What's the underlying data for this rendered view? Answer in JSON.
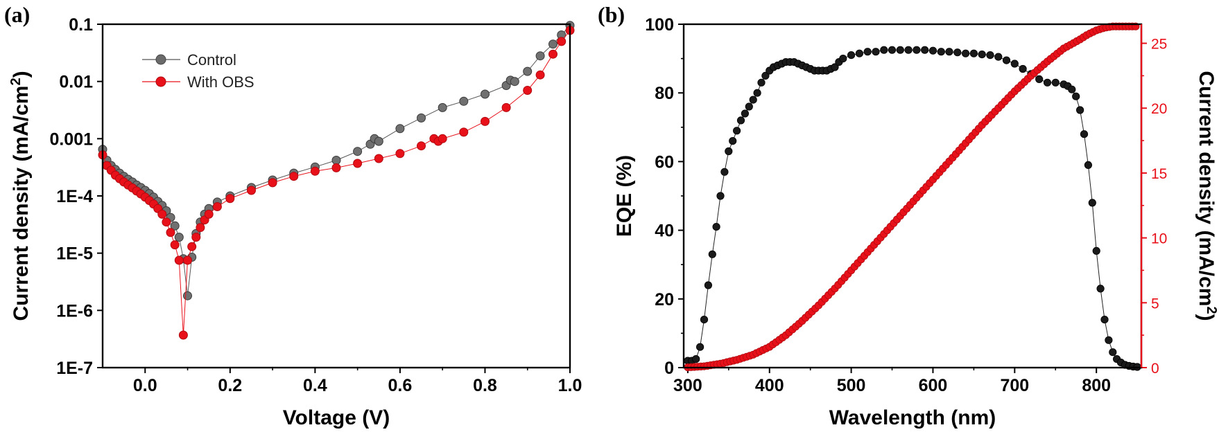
{
  "colors": {
    "control": "#555555",
    "obs": "#e8111a",
    "eqe": "#1a1a1a",
    "jsc": "#e8111a"
  },
  "panels": [
    {
      "label": "(a)"
    },
    {
      "label": "(b)"
    }
  ],
  "chart_data": [
    {
      "type": "scatter",
      "yscale": "log",
      "xlabel": "Voltage (V)",
      "ylabel_main": "Current density (mA/cm",
      "ylabel_sup": "2",
      "ylabel_end": ")",
      "xlim": [
        -0.1,
        1.0
      ],
      "ylim": [
        1e-07,
        0.1
      ],
      "xticks": [
        0.0,
        0.2,
        0.4,
        0.6,
        0.8,
        1.0
      ],
      "xtick_labels": [
        "0.0",
        "0.2",
        "0.4",
        "0.6",
        "0.8",
        "1.0"
      ],
      "yticks": [
        1e-07,
        1e-06,
        1e-05,
        0.0001,
        0.001,
        0.01,
        0.1
      ],
      "ytick_labels": [
        "1E-7",
        "1E-6",
        "1E-5",
        "1E-4",
        "0.001",
        "0.01",
        "0.1"
      ],
      "legend": [
        "Control",
        "With OBS"
      ],
      "series": [
        {
          "name": "Control",
          "points": [
            [
              -0.1,
              0.00065
            ],
            [
              -0.09,
              0.00042
            ],
            [
              -0.08,
              0.00034
            ],
            [
              -0.07,
              0.00029
            ],
            [
              -0.06,
              0.00025
            ],
            [
              -0.05,
              0.00022
            ],
            [
              -0.04,
              0.000195
            ],
            [
              -0.03,
              0.000175
            ],
            [
              -0.02,
              0.000155
            ],
            [
              -0.01,
              0.00014
            ],
            [
              0.0,
              0.000125
            ],
            [
              0.01,
              0.00011
            ],
            [
              0.02,
              9.5e-05
            ],
            [
              0.03,
              8e-05
            ],
            [
              0.04,
              6.8e-05
            ],
            [
              0.05,
              5.5e-05
            ],
            [
              0.06,
              4.2e-05
            ],
            [
              0.07,
              3e-05
            ],
            [
              0.08,
              1.9e-05
            ],
            [
              0.09,
              8e-06
            ],
            [
              0.1,
              1.8e-06
            ],
            [
              0.11,
              8.5e-06
            ],
            [
              0.12,
              2.2e-05
            ],
            [
              0.13,
              3.5e-05
            ],
            [
              0.14,
              4.8e-05
            ],
            [
              0.15,
              6e-05
            ],
            [
              0.17,
              7.8e-05
            ],
            [
              0.2,
              0.0001
            ],
            [
              0.25,
              0.00014
            ],
            [
              0.3,
              0.00019
            ],
            [
              0.35,
              0.00025
            ],
            [
              0.4,
              0.00032
            ],
            [
              0.45,
              0.00042
            ],
            [
              0.5,
              0.0006
            ],
            [
              0.53,
              0.0008
            ],
            [
              0.54,
              0.001
            ],
            [
              0.55,
              0.0009
            ],
            [
              0.6,
              0.0015
            ],
            [
              0.65,
              0.0023
            ],
            [
              0.7,
              0.0035
            ],
            [
              0.75,
              0.0045
            ],
            [
              0.8,
              0.006
            ],
            [
              0.85,
              0.0085
            ],
            [
              0.86,
              0.0105
            ],
            [
              0.87,
              0.01
            ],
            [
              0.9,
              0.015
            ],
            [
              0.93,
              0.028
            ],
            [
              0.96,
              0.045
            ],
            [
              0.98,
              0.065
            ],
            [
              1.0,
              0.095
            ]
          ]
        },
        {
          "name": "With OBS",
          "points": [
            [
              -0.1,
              0.00052
            ],
            [
              -0.09,
              0.00034
            ],
            [
              -0.08,
              0.00028
            ],
            [
              -0.07,
              0.00023
            ],
            [
              -0.06,
              0.0002
            ],
            [
              -0.05,
              0.000175
            ],
            [
              -0.04,
              0.000155
            ],
            [
              -0.03,
              0.000138
            ],
            [
              -0.02,
              0.000122
            ],
            [
              -0.01,
              0.000108
            ],
            [
              0.0,
              9.5e-05
            ],
            [
              0.01,
              8.3e-05
            ],
            [
              0.02,
              7.2e-05
            ],
            [
              0.03,
              6e-05
            ],
            [
              0.04,
              4.8e-05
            ],
            [
              0.05,
              3.5e-05
            ],
            [
              0.06,
              2.3e-05
            ],
            [
              0.07,
              1.4e-05
            ],
            [
              0.08,
              7.5e-06
            ],
            [
              0.09,
              3.7e-07
            ],
            [
              0.1,
              7.5e-06
            ],
            [
              0.11,
              1.3e-05
            ],
            [
              0.12,
              1.9e-05
            ],
            [
              0.13,
              2.8e-05
            ],
            [
              0.14,
              3.8e-05
            ],
            [
              0.15,
              4.8e-05
            ],
            [
              0.17,
              6.5e-05
            ],
            [
              0.2,
              9e-05
            ],
            [
              0.25,
              0.000125
            ],
            [
              0.3,
              0.00017
            ],
            [
              0.35,
              0.00022
            ],
            [
              0.4,
              0.00027
            ],
            [
              0.45,
              0.00031
            ],
            [
              0.5,
              0.00037
            ],
            [
              0.55,
              0.00045
            ],
            [
              0.6,
              0.00055
            ],
            [
              0.65,
              0.00075
            ],
            [
              0.68,
              0.001
            ],
            [
              0.69,
              0.0009
            ],
            [
              0.7,
              0.001
            ],
            [
              0.75,
              0.0013
            ],
            [
              0.8,
              0.002
            ],
            [
              0.85,
              0.0035
            ],
            [
              0.9,
              0.007
            ],
            [
              0.93,
              0.013
            ],
            [
              0.96,
              0.03
            ],
            [
              0.98,
              0.05
            ],
            [
              1.0,
              0.078
            ]
          ]
        }
      ]
    },
    {
      "type": "scatter",
      "xlabel": "Wavelength (nm)",
      "ylabel": "EQE (%)",
      "y2label_main": "Current density (mA/cm",
      "y2label_sup": "2",
      "y2label_end": ")",
      "xlim": [
        295,
        855
      ],
      "ylim": [
        0,
        100
      ],
      "y2lim": [
        0,
        26.47
      ],
      "xticks": [
        300,
        400,
        500,
        600,
        700,
        800
      ],
      "xtick_labels": [
        "300",
        "400",
        "500",
        "600",
        "700",
        "800"
      ],
      "yticks": [
        0,
        20,
        40,
        60,
        80,
        100
      ],
      "ytick_labels": [
        "0",
        "20",
        "40",
        "60",
        "80",
        "100"
      ],
      "y2ticks": [
        0,
        5,
        10,
        15,
        20,
        25
      ],
      "y2tick_labels": [
        "0",
        "5",
        "10",
        "15",
        "20",
        "25"
      ],
      "series": [
        {
          "name": "EQE",
          "axis": "left",
          "points": [
            [
              300,
              2
            ],
            [
              305,
              2
            ],
            [
              310,
              2.5
            ],
            [
              315,
              6
            ],
            [
              320,
              14
            ],
            [
              325,
              24
            ],
            [
              330,
              33
            ],
            [
              335,
              41
            ],
            [
              340,
              50
            ],
            [
              345,
              57
            ],
            [
              350,
              63
            ],
            [
              355,
              66
            ],
            [
              360,
              69
            ],
            [
              365,
              72
            ],
            [
              370,
              74
            ],
            [
              375,
              76
            ],
            [
              380,
              78
            ],
            [
              385,
              80
            ],
            [
              390,
              83
            ],
            [
              395,
              85
            ],
            [
              400,
              86.5
            ],
            [
              405,
              87.5
            ],
            [
              410,
              88
            ],
            [
              415,
              88.5
            ],
            [
              420,
              89
            ],
            [
              425,
              89
            ],
            [
              430,
              89
            ],
            [
              435,
              88.5
            ],
            [
              440,
              88
            ],
            [
              445,
              87.5
            ],
            [
              450,
              87
            ],
            [
              455,
              86.5
            ],
            [
              460,
              86.5
            ],
            [
              465,
              86.5
            ],
            [
              470,
              86.5
            ],
            [
              475,
              87
            ],
            [
              480,
              87.5
            ],
            [
              485,
              89
            ],
            [
              490,
              90
            ],
            [
              500,
              91
            ],
            [
              510,
              91.5
            ],
            [
              520,
              92
            ],
            [
              530,
              92
            ],
            [
              540,
              92.5
            ],
            [
              550,
              92.5
            ],
            [
              560,
              92.5
            ],
            [
              570,
              92.5
            ],
            [
              580,
              92.5
            ],
            [
              590,
              92.5
            ],
            [
              600,
              92.3
            ],
            [
              610,
              92
            ],
            [
              620,
              92
            ],
            [
              630,
              91.8
            ],
            [
              640,
              91.5
            ],
            [
              650,
              91.5
            ],
            [
              660,
              91.2
            ],
            [
              670,
              91
            ],
            [
              680,
              90.5
            ],
            [
              690,
              89.5
            ],
            [
              700,
              88.5
            ],
            [
              710,
              87
            ],
            [
              720,
              85.5
            ],
            [
              730,
              84
            ],
            [
              740,
              83
            ],
            [
              750,
              83
            ],
            [
              760,
              82.5
            ],
            [
              765,
              82
            ],
            [
              770,
              81
            ],
            [
              775,
              79
            ],
            [
              780,
              75
            ],
            [
              785,
              68
            ],
            [
              790,
              59
            ],
            [
              795,
              48
            ],
            [
              800,
              34
            ],
            [
              805,
              23
            ],
            [
              810,
              14
            ],
            [
              815,
              8
            ],
            [
              820,
              4.5
            ],
            [
              825,
              2.5
            ],
            [
              830,
              1.5
            ],
            [
              835,
              0.8
            ],
            [
              840,
              0.5
            ],
            [
              845,
              0.3
            ],
            [
              850,
              0.2
            ]
          ]
        },
        {
          "name": "Integrated current density",
          "axis": "right",
          "points": [
            [
              300,
              0.02
            ],
            [
              320,
              0.1
            ],
            [
              340,
              0.3
            ],
            [
              360,
              0.6
            ],
            [
              380,
              1.0
            ],
            [
              400,
              1.6
            ],
            [
              420,
              2.5
            ],
            [
              440,
              3.6
            ],
            [
              460,
              4.8
            ],
            [
              480,
              6.1
            ],
            [
              500,
              7.5
            ],
            [
              520,
              8.9
            ],
            [
              540,
              10.3
            ],
            [
              560,
              11.7
            ],
            [
              580,
              13.1
            ],
            [
              600,
              14.5
            ],
            [
              620,
              15.9
            ],
            [
              640,
              17.3
            ],
            [
              660,
              18.7
            ],
            [
              680,
              20.0
            ],
            [
              700,
              21.3
            ],
            [
              720,
              22.5
            ],
            [
              740,
              23.6
            ],
            [
              760,
              24.6
            ],
            [
              780,
              25.3
            ],
            [
              790,
              25.7
            ],
            [
              800,
              26.0
            ],
            [
              810,
              26.2
            ],
            [
              820,
              26.3
            ],
            [
              850,
              26.3
            ]
          ]
        }
      ]
    }
  ]
}
